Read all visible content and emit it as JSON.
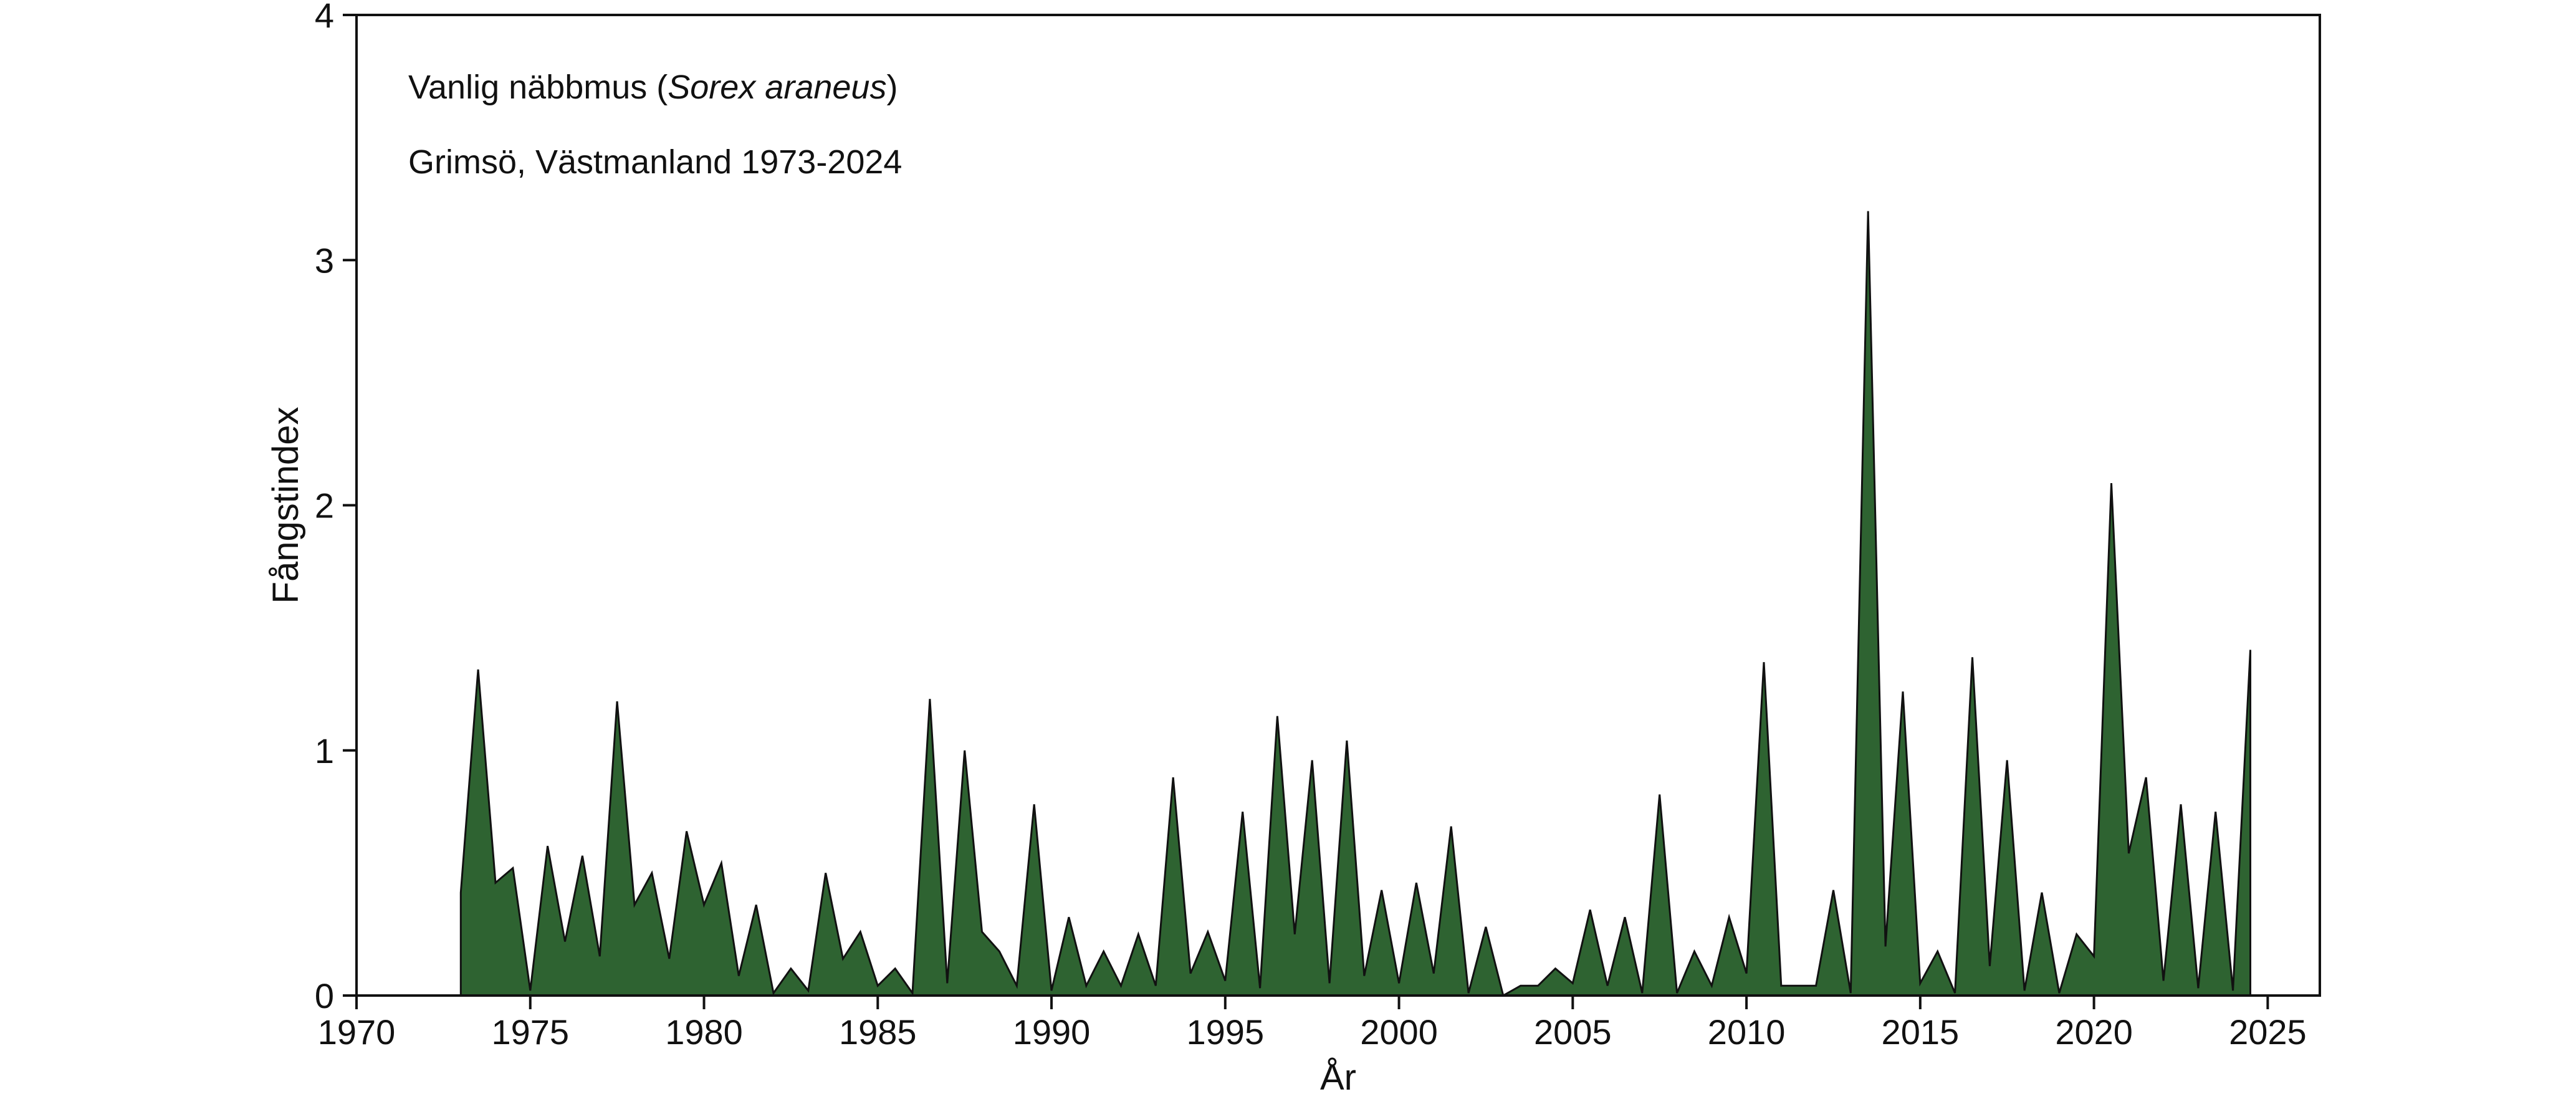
{
  "chart_data": {
    "type": "area",
    "title_line1_prefix": "Vanlig näbbmus (",
    "title_line1_species": "Sorex araneus",
    "title_line1_suffix": ")",
    "title_line2": "Grimsö, Västmanland 1973-2024",
    "xlabel": "År",
    "ylabel": "Fångstindex",
    "xlim": [
      1970,
      2026.5
    ],
    "ylim": [
      0,
      4
    ],
    "x_ticks": [
      1970,
      1975,
      1980,
      1985,
      1990,
      1995,
      2000,
      2005,
      2010,
      2015,
      2020,
      2025
    ],
    "y_ticks": [
      0,
      1,
      2,
      3,
      4
    ],
    "fill_color": "#2e6331",
    "line_color": "#111111",
    "x": [
      1973.0,
      1973.5,
      1974.0,
      1974.5,
      1975.0,
      1975.5,
      1976.0,
      1976.5,
      1977.0,
      1977.5,
      1978.0,
      1978.5,
      1979.0,
      1979.5,
      1980.0,
      1980.5,
      1981.0,
      1981.5,
      1982.0,
      1982.5,
      1983.0,
      1983.5,
      1984.0,
      1984.5,
      1985.0,
      1985.5,
      1986.0,
      1986.5,
      1987.0,
      1987.5,
      1988.0,
      1988.5,
      1989.0,
      1989.5,
      1990.0,
      1990.5,
      1991.0,
      1991.5,
      1992.0,
      1992.5,
      1993.0,
      1993.5,
      1994.0,
      1994.5,
      1995.0,
      1995.5,
      1996.0,
      1996.5,
      1997.0,
      1997.5,
      1998.0,
      1998.5,
      1999.0,
      1999.5,
      2000.0,
      2000.5,
      2001.0,
      2001.5,
      2002.0,
      2002.5,
      2003.0,
      2003.5,
      2004.0,
      2004.5,
      2005.0,
      2005.5,
      2006.0,
      2006.5,
      2007.0,
      2007.5,
      2008.0,
      2008.5,
      2009.0,
      2009.5,
      2010.0,
      2010.5,
      2011.0,
      2011.5,
      2012.0,
      2012.5,
      2013.0,
      2013.5,
      2014.0,
      2014.5,
      2015.0,
      2015.5,
      2016.0,
      2016.5,
      2017.0,
      2017.5,
      2018.0,
      2018.5,
      2019.0,
      2019.5,
      2020.0,
      2020.5,
      2021.0,
      2021.5,
      2022.0,
      2022.5,
      2023.0,
      2023.5,
      2024.0,
      2024.5
    ],
    "values": [
      0.42,
      1.33,
      0.46,
      0.52,
      0.02,
      0.61,
      0.22,
      0.57,
      0.16,
      1.2,
      0.37,
      0.5,
      0.15,
      0.67,
      0.37,
      0.54,
      0.08,
      0.37,
      0.01,
      0.11,
      0.02,
      0.5,
      0.15,
      0.26,
      0.04,
      0.11,
      0.01,
      1.21,
      0.05,
      1.0,
      0.26,
      0.18,
      0.04,
      0.78,
      0.02,
      0.32,
      0.04,
      0.18,
      0.04,
      0.25,
      0.04,
      0.89,
      0.09,
      0.26,
      0.06,
      0.75,
      0.03,
      1.14,
      0.25,
      0.96,
      0.05,
      1.04,
      0.08,
      0.43,
      0.05,
      0.46,
      0.09,
      0.69,
      0.01,
      0.28,
      0.0,
      0.04,
      0.04,
      0.11,
      0.05,
      0.35,
      0.04,
      0.32,
      0.01,
      0.82,
      0.01,
      0.18,
      0.04,
      0.32,
      0.09,
      1.36,
      0.04,
      0.04,
      0.04,
      0.43,
      0.01,
      3.2,
      0.2,
      1.24,
      0.05,
      0.18,
      0.01,
      1.38,
      0.12,
      0.96,
      0.02,
      0.42,
      0.01,
      0.25,
      0.16,
      2.09,
      0.58,
      0.89,
      0.06,
      0.78,
      0.03,
      0.75,
      0.02,
      1.41
    ]
  }
}
